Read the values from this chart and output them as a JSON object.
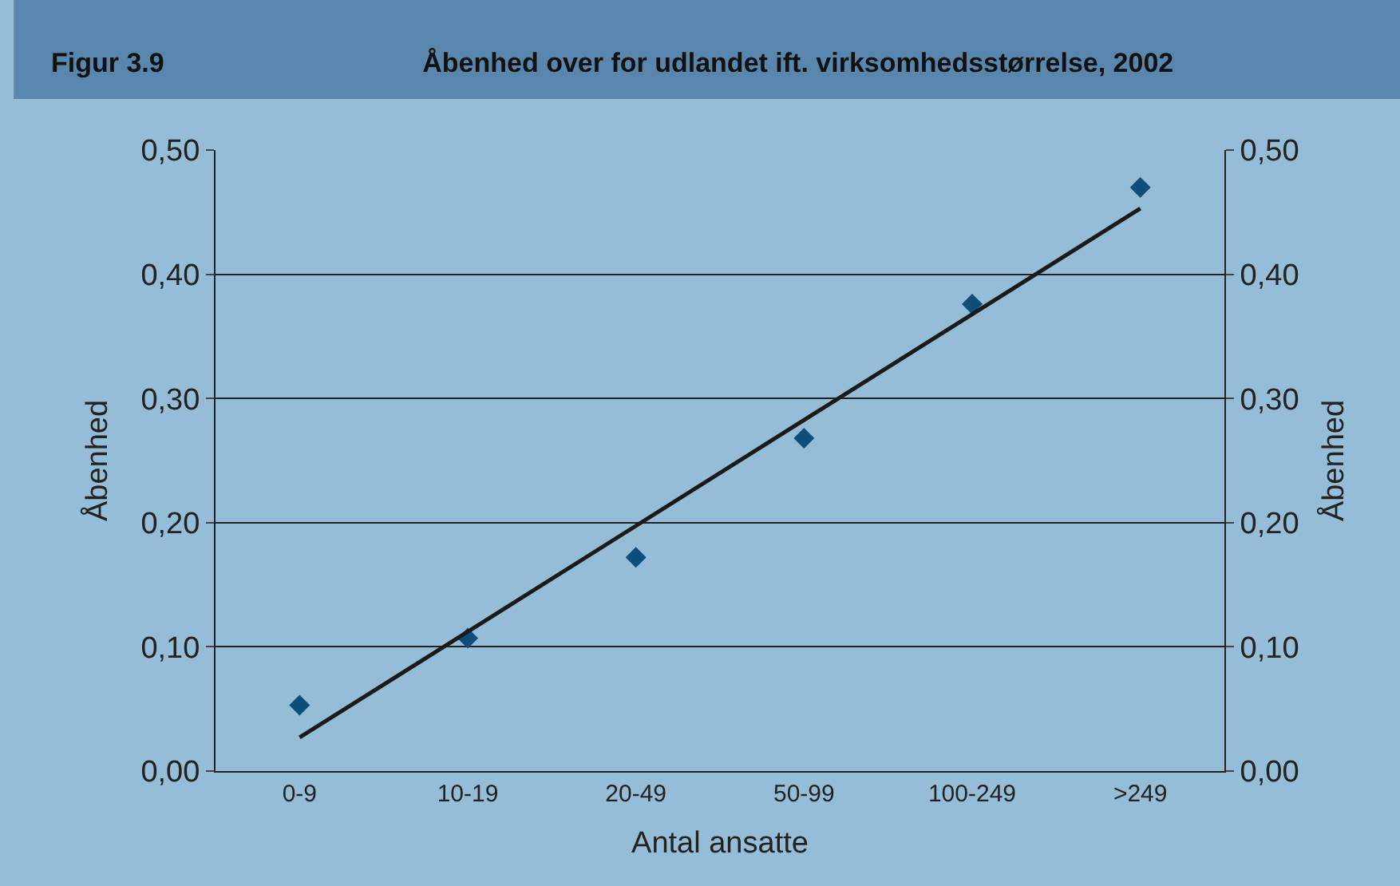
{
  "chart_data": {
    "type": "scatter",
    "title": "Åbenhed over for udlandet ift. virksomhedsstørrelse, 2002",
    "annotations": [
      "Figur 3.9"
    ],
    "xlabel": "Antal ansatte",
    "ylabel": "Åbenhed",
    "y2label": "Åbenhed",
    "categories": [
      "0-9",
      "10-19",
      "20-49",
      "50-99",
      "100-249",
      ">249"
    ],
    "series": [
      {
        "color": "#0f4d7a",
        "marker": "diamond",
        "values": [
          0.053,
          0.107,
          0.172,
          0.268,
          0.376,
          0.47
        ]
      },
      {
        "type": "line",
        "color": "#1a1a1a",
        "line_style": "solid",
        "values": [
          0.027,
          null,
          null,
          null,
          null,
          0.453
        ]
      }
    ],
    "ylim": [
      0,
      0.5
    ],
    "yticks": [
      {
        "value": 0,
        "label": "0,00"
      },
      {
        "value": 0.1,
        "label": "0,10"
      },
      {
        "value": 0.2,
        "label": "0,20"
      },
      {
        "value": 0.3,
        "label": "0,30"
      },
      {
        "value": 0.4,
        "label": "0,40"
      },
      {
        "value": 0.5,
        "label": "0,50"
      }
    ],
    "y2lim": [
      0,
      0.5
    ],
    "y2ticks": [
      {
        "value": 0,
        "label": "0,00"
      },
      {
        "value": 0.1,
        "label": "0,10"
      },
      {
        "value": 0.2,
        "label": "0,20"
      },
      {
        "value": 0.3,
        "label": "0,30"
      },
      {
        "value": 0.4,
        "label": "0,40"
      },
      {
        "value": 0.5,
        "label": "0,50"
      }
    ],
    "grid": "y",
    "legend": false
  }
}
